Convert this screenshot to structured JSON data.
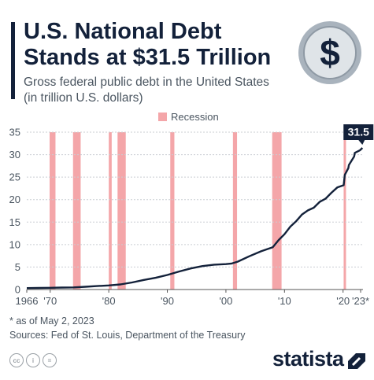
{
  "header": {
    "title_line1": "U.S. National Debt",
    "title_line2": "Stands at $31.5 Trillion",
    "subtitle_line1": "Gross federal public debt in the United States",
    "subtitle_line2": "(in trillion U.S. dollars)"
  },
  "footer": {
    "as_of": "* as of May 2, 2023",
    "sources": "Sources: Fed of St. Louis, Department of the Treasury",
    "brand": "statista"
  },
  "colors": {
    "line": "#13213a",
    "recession": "#f4a6a9",
    "grid": "#c9cdd2",
    "text": "#4a5560",
    "callout": "#13213a"
  },
  "chart_data": {
    "type": "line",
    "ylim": [
      0,
      35
    ],
    "xlim": [
      1966,
      2023.4
    ],
    "yticks": [
      "0",
      "5",
      "10",
      "15",
      "20",
      "25",
      "30",
      "35"
    ],
    "xticks": [
      {
        "x": 1966,
        "label": "1966"
      },
      {
        "x": 1970,
        "label": "'70"
      },
      {
        "x": 1980,
        "label": "'80"
      },
      {
        "x": 1990,
        "label": "'90"
      },
      {
        "x": 2000,
        "label": "'00"
      },
      {
        "x": 2010,
        "label": "'10"
      },
      {
        "x": 2020,
        "label": "'20"
      },
      {
        "x": 2023,
        "label": "'23*"
      }
    ],
    "legend": {
      "label": "Recession",
      "placement": "top-center"
    },
    "recessions": [
      [
        1969.9,
        1970.9
      ],
      [
        1973.9,
        1975.2
      ],
      [
        1980.0,
        1980.5
      ],
      [
        1981.5,
        1982.9
      ],
      [
        1990.5,
        1991.2
      ],
      [
        2001.2,
        2001.9
      ],
      [
        2007.9,
        2009.5
      ],
      [
        2020.1,
        2020.4
      ]
    ],
    "callout": {
      "x": 2023.3,
      "y": 31.5,
      "label": "31.5"
    },
    "series": [
      {
        "values": [
          {
            "x": 1966,
            "y": 0.32
          },
          {
            "x": 1968,
            "y": 0.35
          },
          {
            "x": 1970,
            "y": 0.38
          },
          {
            "x": 1972,
            "y": 0.43
          },
          {
            "x": 1974,
            "y": 0.48
          },
          {
            "x": 1976,
            "y": 0.62
          },
          {
            "x": 1978,
            "y": 0.77
          },
          {
            "x": 1980,
            "y": 0.91
          },
          {
            "x": 1982,
            "y": 1.14
          },
          {
            "x": 1984,
            "y": 1.57
          },
          {
            "x": 1986,
            "y": 2.13
          },
          {
            "x": 1988,
            "y": 2.6
          },
          {
            "x": 1990,
            "y": 3.23
          },
          {
            "x": 1992,
            "y": 4.0
          },
          {
            "x": 1994,
            "y": 4.69
          },
          {
            "x": 1996,
            "y": 5.22
          },
          {
            "x": 1998,
            "y": 5.53
          },
          {
            "x": 2000,
            "y": 5.66
          },
          {
            "x": 2001,
            "y": 5.8
          },
          {
            "x": 2002,
            "y": 6.2
          },
          {
            "x": 2004,
            "y": 7.4
          },
          {
            "x": 2006,
            "y": 8.5
          },
          {
            "x": 2008,
            "y": 9.4
          },
          {
            "x": 2009,
            "y": 11.0
          },
          {
            "x": 2010,
            "y": 12.3
          },
          {
            "x": 2011,
            "y": 14.0
          },
          {
            "x": 2012,
            "y": 15.2
          },
          {
            "x": 2013,
            "y": 16.7
          },
          {
            "x": 2014,
            "y": 17.6
          },
          {
            "x": 2015,
            "y": 18.2
          },
          {
            "x": 2016,
            "y": 19.5
          },
          {
            "x": 2017,
            "y": 20.2
          },
          {
            "x": 2018,
            "y": 21.5
          },
          {
            "x": 2019,
            "y": 22.7
          },
          {
            "x": 2020.1,
            "y": 23.2
          },
          {
            "x": 2020.3,
            "y": 25.5
          },
          {
            "x": 2020.9,
            "y": 27.0
          },
          {
            "x": 2021,
            "y": 27.7
          },
          {
            "x": 2021.9,
            "y": 29.6
          },
          {
            "x": 2022,
            "y": 30.4
          },
          {
            "x": 2022.9,
            "y": 31.0
          },
          {
            "x": 2023.3,
            "y": 31.5
          }
        ]
      }
    ]
  }
}
